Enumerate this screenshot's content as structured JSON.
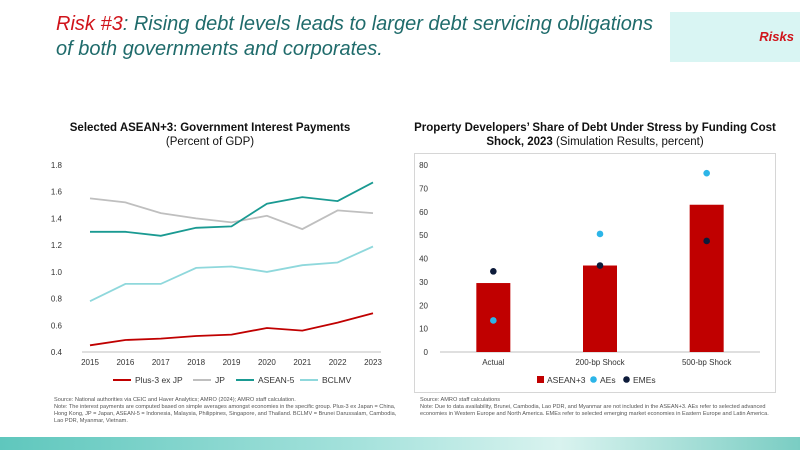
{
  "header": {
    "risk_label": "Risk #3",
    "title_rest": ": Rising debt levels leads to larger debt servicing obligations of both governments and corporates.",
    "badge": "Risks"
  },
  "left_chart_title": "Selected ASEAN+3: Government Interest Payments",
  "left_chart_subtitle": "(Percent of GDP)",
  "right_chart_title": "Property Developers’ Share of Debt Under Stress by Funding Cost Shock, 2023",
  "right_chart_subtitle": "(Simulation Results, percent)",
  "left_footnote": "Source: National authorities via CEIC and Haver Analytics; AMRO (2024); AMRO staff calculation.\nNote: The interest payments are computed based on simple averages amongst economies in the specific group. Plus-3 ex Japan = China, Hong Kong, JP = Japan, ASEAN-5 = Indonesia, Malaysia, Philippines, Singapore, and Thailand. BCLMV = Brunei Darussalam, Cambodia, Lao PDR, Myanmar, Vietnam.",
  "right_footnote": "Source: AMRO staff calculations\nNote: Due to data availability, Brunei, Cambodia, Lao PDR, and Myanmar are not included in the ASEAN+3. AEs refer to selected advanced economies in Western Europe and North America. EMEs refer to selected emerging market economies in Eastern Europe and Latin America.",
  "chart_data": [
    {
      "type": "line",
      "title": "Selected ASEAN+3: Government Interest Payments",
      "subtitle": "(Percent of GDP)",
      "x": [
        2015,
        2016,
        2017,
        2018,
        2019,
        2020,
        2021,
        2022,
        2023
      ],
      "x_tick_labels": [
        "2015",
        "2016",
        "2017",
        "2018",
        "2019",
        "2020",
        "2021",
        "2022",
        "2023"
      ],
      "ylim": [
        0.4,
        1.8
      ],
      "y_ticks": [
        "0.4",
        "0.6",
        "0.8",
        "1.0",
        "1.2",
        "1.4",
        "1.6",
        "1.8"
      ],
      "y_tick_values": [
        0.4,
        0.6,
        0.8,
        1.0,
        1.2,
        1.4,
        1.6,
        1.8
      ],
      "legend_position": "bottom",
      "series": [
        {
          "name": "Plus-3 ex JP",
          "color": "#c00000",
          "values": [
            0.45,
            0.49,
            0.5,
            0.52,
            0.53,
            0.58,
            0.56,
            0.62,
            0.69
          ]
        },
        {
          "name": "JP",
          "color": "#bfbfbf",
          "values": [
            1.55,
            1.52,
            1.44,
            1.4,
            1.37,
            1.42,
            1.32,
            1.46,
            1.44
          ]
        },
        {
          "name": "ASEAN-5",
          "color": "#1a9a92",
          "values": [
            1.3,
            1.3,
            1.27,
            1.33,
            1.34,
            1.51,
            1.56,
            1.53,
            1.67
          ]
        },
        {
          "name": "BCLMV",
          "color": "#8fd8dc",
          "values": [
            0.78,
            0.91,
            0.91,
            1.03,
            1.04,
            1.0,
            1.05,
            1.07,
            1.19
          ]
        }
      ]
    },
    {
      "type": "bar",
      "title": "Property Developers’ Share of Debt Under Stress by Funding Cost Shock, 2023",
      "subtitle": "(Simulation Results, percent)",
      "categories": [
        "Actual",
        "200-bp Shock",
        "500-bp Shock"
      ],
      "ylim": [
        0,
        80
      ],
      "y_ticks": [
        "0",
        "10",
        "20",
        "30",
        "40",
        "50",
        "60",
        "70",
        "80"
      ],
      "y_tick_values": [
        0,
        10,
        20,
        30,
        40,
        50,
        60,
        70,
        80
      ],
      "legend_position": "bottom",
      "series": [
        {
          "name": "ASEAN+3",
          "kind": "bar",
          "color": "#c00000",
          "values": [
            29.5,
            37,
            63
          ]
        },
        {
          "name": "AEs",
          "kind": "dot",
          "color": "#2cb5e8",
          "values": [
            13.5,
            50.5,
            76.5
          ]
        },
        {
          "name": "EMEs",
          "kind": "dot",
          "color": "#0d1b3a",
          "values": [
            34.5,
            37,
            47.5
          ]
        }
      ]
    }
  ]
}
